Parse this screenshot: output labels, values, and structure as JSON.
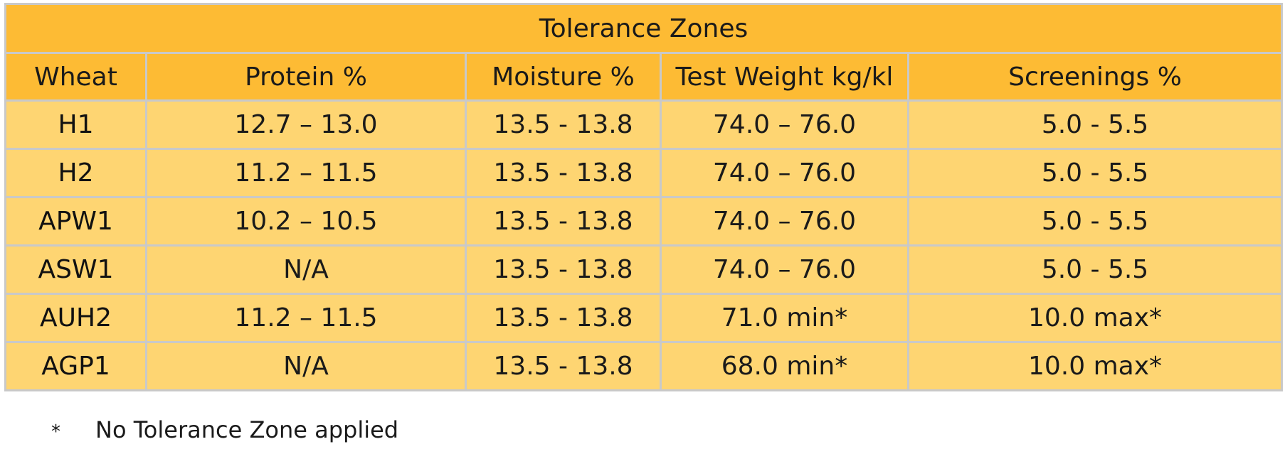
{
  "table": {
    "title": "Tolerance Zones",
    "columns": [
      "Wheat",
      "Protein %",
      "Moisture %",
      "Test Weight kg/kl",
      "Screenings %"
    ],
    "rows": [
      [
        "H1",
        "12.7 – 13.0",
        "13.5 - 13.8",
        "74.0 – 76.0",
        "5.0 - 5.5"
      ],
      [
        "H2",
        "11.2 – 11.5",
        "13.5 - 13.8",
        "74.0 – 76.0",
        "5.0 - 5.5"
      ],
      [
        "APW1",
        "10.2 – 10.5",
        "13.5 - 13.8",
        "74.0 – 76.0",
        "5.0 - 5.5"
      ],
      [
        "ASW1",
        "N/A",
        "13.5 - 13.8",
        "74.0 – 76.0",
        "5.0 - 5.5"
      ],
      [
        "AUH2",
        "11.2 – 11.5",
        "13.5 - 13.8",
        "71.0 min*",
        "10.0 max*"
      ],
      [
        "AGP1",
        "N/A",
        "13.5 - 13.8",
        "68.0 min*",
        "10.0 max*"
      ]
    ]
  },
  "footnote": {
    "marker": "*",
    "text": "No Tolerance Zone applied"
  },
  "colors": {
    "header_background": "#fdbb34",
    "row_background": "#fed572",
    "border": "#c9c9c9"
  }
}
